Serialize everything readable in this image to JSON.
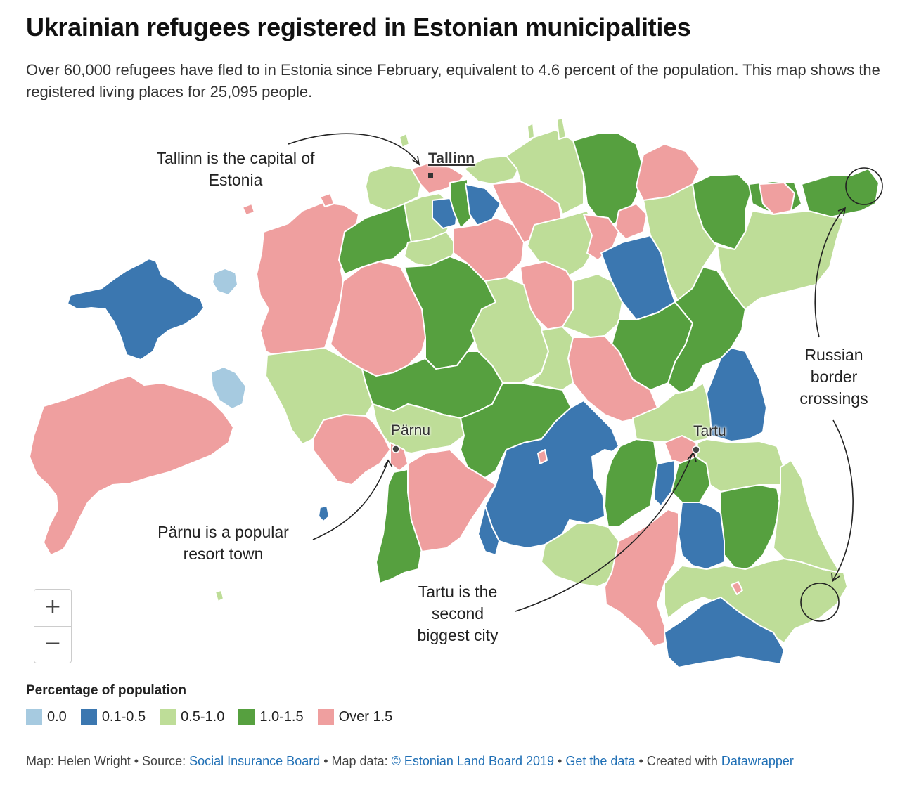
{
  "header": {
    "title": "Ukrainian refugees registered in Estonian municipalities",
    "subtitle": "Over 60,000 refugees have fled to in Estonia since February, equivalent to 4.6 percent of the population. This map shows the registered living places for 25,095 people."
  },
  "colors": {
    "c0": "#a6cae0",
    "c1": "#3b77b0",
    "c2": "#bedd98",
    "c3": "#56a03f",
    "c4": "#ef9f9f",
    "border": "#ffffff"
  },
  "cities": {
    "tallinn": "Tallinn",
    "parnu": "Pärnu",
    "tartu": "Tartu"
  },
  "annotations": {
    "tallinn": "Tallinn is the capital of Estonia",
    "parnu": "Pärnu is a popular resort town",
    "tartu": "Tartu is the second biggest city",
    "russia": "Russian border crossings"
  },
  "zoom": {
    "in": "+",
    "out": "−"
  },
  "legend": {
    "title": "Percentage of population",
    "items": [
      {
        "label": "0.0",
        "color": "#a6cae0"
      },
      {
        "label": "0.1-0.5",
        "color": "#3b77b0"
      },
      {
        "label": "0.5-1.0",
        "color": "#bedd98"
      },
      {
        "label": "1.0-1.5",
        "color": "#56a03f"
      },
      {
        "label": "Over 1.5",
        "color": "#ef9f9f"
      }
    ]
  },
  "footer": {
    "map_by": "Map: Helen Wright",
    "source_label": "Source:",
    "source_link": "Social Insurance Board",
    "mapdata_label": "Map data:",
    "mapdata_link": "© Estonian Land Board 2019",
    "getdata_link": "Get the data",
    "created_label": "Created with",
    "created_link": "Datawrapper",
    "sep": " • "
  }
}
